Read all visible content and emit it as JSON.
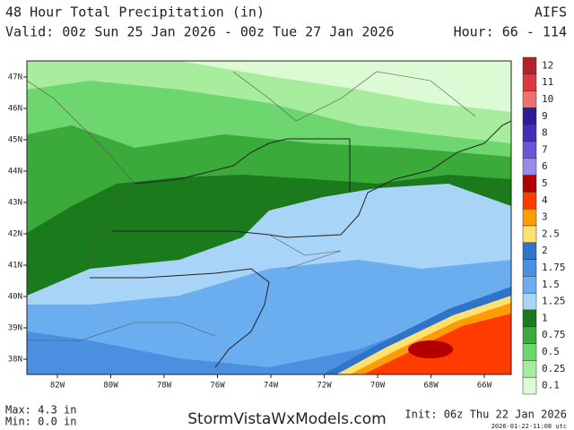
{
  "header": {
    "title": "48 Hour Total Precipitation (in)",
    "model": "AIFS",
    "valid": "Valid: 00z Sun 25 Jan 2026 - 00z Tue 27 Jan 2026",
    "hour": "Hour: 66 - 114"
  },
  "map": {
    "lat_labels": [
      "47N",
      "46N",
      "45N",
      "44N",
      "43N",
      "42N",
      "41N",
      "40N",
      "39N",
      "38N"
    ],
    "lon_labels": [
      "82W",
      "80W",
      "78W",
      "76W",
      "74W",
      "72W",
      "70W",
      "68W",
      "66W"
    ]
  },
  "legend": [
    {
      "label": "12",
      "color": "#b3242a"
    },
    {
      "label": "11",
      "color": "#dc3a40"
    },
    {
      "label": "10",
      "color": "#f07070"
    },
    {
      "label": "9",
      "color": "#2c1c96"
    },
    {
      "label": "8",
      "color": "#4230b4"
    },
    {
      "label": "7",
      "color": "#6b57d6"
    },
    {
      "label": "6",
      "color": "#9a8ae8"
    },
    {
      "label": "5",
      "color": "#b00000"
    },
    {
      "label": "4",
      "color": "#ff3c00"
    },
    {
      "label": "3",
      "color": "#ff9d00"
    },
    {
      "label": "2.5",
      "color": "#ffe070"
    },
    {
      "label": "2",
      "color": "#2f74c8"
    },
    {
      "label": "1.75",
      "color": "#4b8fe0"
    },
    {
      "label": "1.5",
      "color": "#6aaef0"
    },
    {
      "label": "1.25",
      "color": "#a8d4f8"
    },
    {
      "label": "1",
      "color": "#1b7a1b"
    },
    {
      "label": "0.75",
      "color": "#3aaa3a"
    },
    {
      "label": "0.5",
      "color": "#6ed66e"
    },
    {
      "label": "0.25",
      "color": "#a8ec9e"
    },
    {
      "label": "0.1",
      "color": "#dcfad4"
    }
  ],
  "footer": {
    "max": "Max: 4.3 in",
    "min": "Min: 0.0 in",
    "site": "StormVistaWxModels.com",
    "init": "Init: 06z Thu 22 Jan 2026",
    "stamp": "2026-01-22-11:08 utc"
  }
}
